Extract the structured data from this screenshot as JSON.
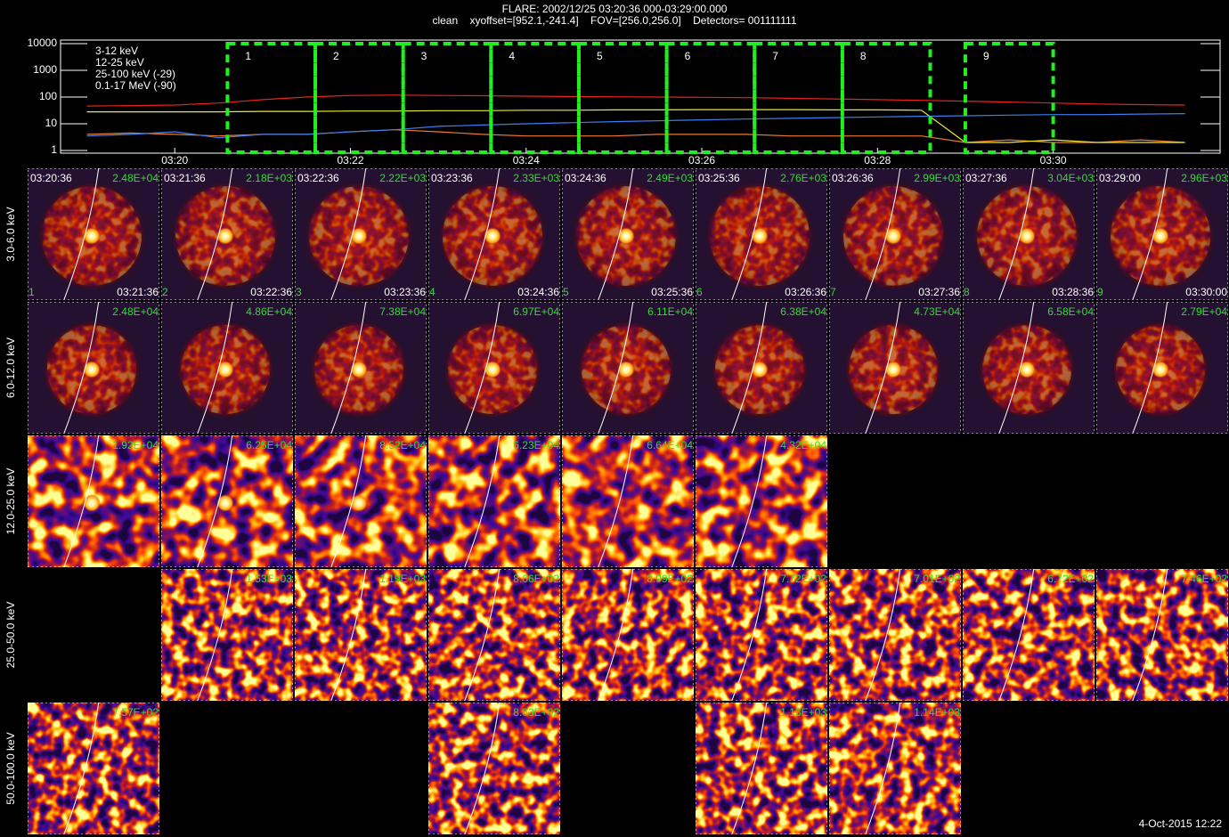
{
  "header": {
    "title": "FLARE: 2002/12/25 03:20:36.000-03:29:00.000",
    "subtitle": "clean    xyoffset=[952.1,-241.4]    FOV=[256.0,256.0]    Detectors= 001111111"
  },
  "chart_data": {
    "type": "line",
    "log_y": true,
    "xlim": [
      198.7,
      211.9
    ],
    "xticks": [
      {
        "value": 200,
        "label": "03:20"
      },
      {
        "value": 202,
        "label": "03:22"
      },
      {
        "value": 204,
        "label": "03:24"
      },
      {
        "value": 206,
        "label": "03:26"
      },
      {
        "value": 208,
        "label": "03:28"
      },
      {
        "value": 210,
        "label": "03:30"
      }
    ],
    "ylim": [
      1,
      10000
    ],
    "yticks": [
      1,
      10,
      100,
      1000,
      10000
    ],
    "x": [
      199,
      199.5,
      200,
      200.5,
      201,
      201.5,
      202,
      202.5,
      203,
      203.5,
      204,
      204.5,
      205,
      205.5,
      206,
      206.5,
      207,
      207.5,
      208,
      208.5,
      209,
      209.5,
      210,
      210.5,
      211,
      211.5
    ],
    "series": [
      {
        "name": "3-12 keV",
        "color": "#e8231c",
        "values": [
          46,
          48,
          50,
          60,
          80,
          100,
          115,
          118,
          115,
          112,
          108,
          105,
          102,
          100,
          98,
          95,
          90,
          85,
          80,
          75,
          70,
          65,
          60,
          55,
          52,
          50
        ]
      },
      {
        "name": "12-25 keV",
        "color": "#f07a28",
        "values": [
          4,
          4.5,
          4,
          3.5,
          4,
          4,
          5,
          6,
          5,
          4,
          3.5,
          3.5,
          3.5,
          4,
          4,
          4,
          3.5,
          3.5,
          3.5,
          3.5,
          2,
          2.5,
          2,
          2,
          2.5,
          2
        ]
      },
      {
        "name": "25-100 keV (-29)",
        "color": "#f0e82a",
        "values": [
          28,
          28,
          28,
          28,
          29,
          29,
          30,
          30,
          31,
          31,
          32,
          32,
          33,
          33,
          34,
          34,
          34,
          33,
          33,
          32,
          2,
          2,
          2.5,
          2,
          2,
          2
        ]
      },
      {
        "name": "0.1-17 MeV (-90)",
        "color": "#3a7ef0",
        "values": [
          3.5,
          4,
          5,
          3,
          4,
          4,
          5,
          6,
          8,
          9,
          10,
          11,
          12,
          13,
          14,
          15,
          16,
          17,
          18,
          19,
          20,
          21,
          22,
          22,
          23,
          24
        ]
      }
    ],
    "interval_color": "#22ee22",
    "intervals": [
      {
        "label": "1",
        "start": 200.6,
        "end": 201.6
      },
      {
        "label": "2",
        "start": 201.6,
        "end": 202.6
      },
      {
        "label": "3",
        "start": 202.6,
        "end": 203.6
      },
      {
        "label": "4",
        "start": 203.6,
        "end": 204.6
      },
      {
        "label": "5",
        "start": 204.6,
        "end": 205.6
      },
      {
        "label": "6",
        "start": 205.6,
        "end": 206.6
      },
      {
        "label": "7",
        "start": 206.6,
        "end": 207.6
      },
      {
        "label": "8",
        "start": 207.6,
        "end": 208.6
      },
      {
        "label": "9",
        "start": 209.0,
        "end": 210.0
      }
    ]
  },
  "image_grid": {
    "energy_bands": [
      "3.0-6.0 keV",
      "6.0-12.0 keV",
      "12.0-25.0 keV",
      "25.0-50.0 keV",
      "50.0-100.0 keV"
    ],
    "rows": [
      [
        {
          "start": "03:20:36",
          "max": "2.48E+04",
          "number": "1",
          "end": "03:21:36"
        },
        {
          "start": "03:21:36",
          "max": "2.18E+03",
          "number": "2",
          "end": "03:22:36"
        },
        {
          "start": "03:22:36",
          "max": "2.22E+03",
          "number": "3",
          "end": "03:23:36"
        },
        {
          "start": "03:23:36",
          "max": "2.33E+03",
          "number": "4",
          "end": "03:24:36"
        },
        {
          "start": "03:24:36",
          "max": "2.49E+03",
          "number": "5",
          "end": "03:25:36"
        },
        {
          "start": "03:25:36",
          "max": "2.76E+03",
          "number": "6",
          "end": "03:26:36"
        },
        {
          "start": "03:26:36",
          "max": "2.99E+03",
          "number": "7",
          "end": "03:27:36"
        },
        {
          "start": "03:27:36",
          "max": "3.04E+03",
          "number": "8",
          "end": "03:28:36"
        },
        {
          "start": "03:29:00",
          "max": "2.96E+03",
          "number": "9",
          "end": "03:30:00"
        }
      ],
      [
        {
          "max": "2.48E+04"
        },
        {
          "max": "4.86E+04"
        },
        {
          "max": "7.38E+04"
        },
        {
          "max": "6.97E+04"
        },
        {
          "max": "6.11E+04"
        },
        {
          "max": "6.38E+04"
        },
        {
          "max": "4.73E+04"
        },
        {
          "max": "6.58E+04"
        },
        {
          "max": "2.79E+04"
        }
      ],
      [
        {
          "max": "1.92E+04"
        },
        {
          "max": "6.25E+04"
        },
        {
          "max": "8.52E+04"
        },
        {
          "max": "6.23E+04"
        },
        {
          "max": "6.64E+04"
        },
        {
          "max": "4.32E+04"
        },
        null,
        null,
        null
      ],
      [
        null,
        {
          "max": "1.53E+03"
        },
        {
          "max": "1.19E+03"
        },
        {
          "max": "8.66E+02"
        },
        {
          "max": "8.99E+02"
        },
        {
          "max": "7.72E+02"
        },
        {
          "max": "7.01E+02"
        },
        {
          "max": "6.72E+02"
        },
        {
          "max": "7.46E+02"
        }
      ],
      [
        {
          "max": "7.57E+02"
        },
        null,
        null,
        {
          "max": "8.63E+02"
        },
        null,
        {
          "max": "1.13E+03"
        },
        {
          "max": "1.14E+03"
        },
        null,
        null
      ]
    ]
  },
  "footer": {
    "date": "4-Oct-2015 12:22"
  }
}
